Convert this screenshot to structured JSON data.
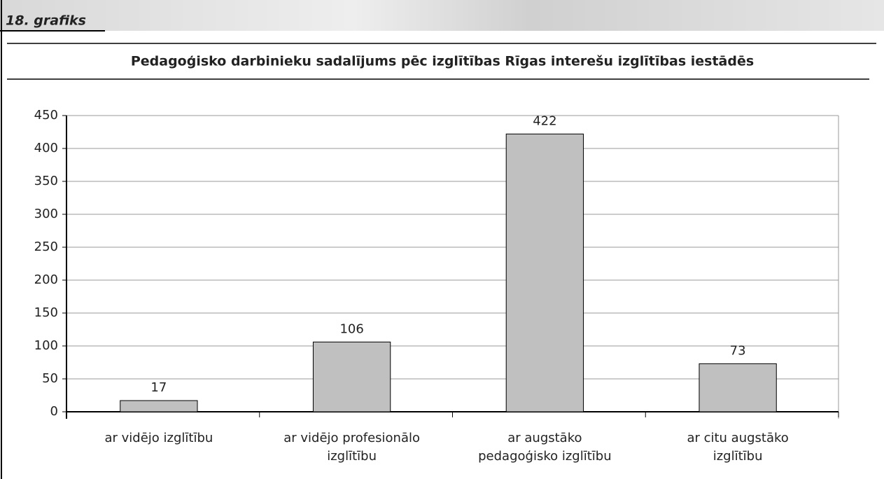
{
  "header": "18. grafiks",
  "chart_data": {
    "type": "bar",
    "title": "Pedagoģisko darbinieku sadalījums pēc izglītības Rīgas interešu izglītības iestādēs",
    "categories": [
      "ar vidējo izglītību",
      "ar vidējo profesionālo izglītību",
      "ar augstāko pedagoģisko izglītību",
      "ar citu augstāko izglītību"
    ],
    "values": [
      17,
      106,
      422,
      73
    ],
    "color": "#c0c0c0",
    "ylim": [
      0,
      450
    ],
    "yticks": [
      0,
      50,
      100,
      150,
      200,
      250,
      300,
      350,
      400,
      450
    ],
    "grid": true
  }
}
